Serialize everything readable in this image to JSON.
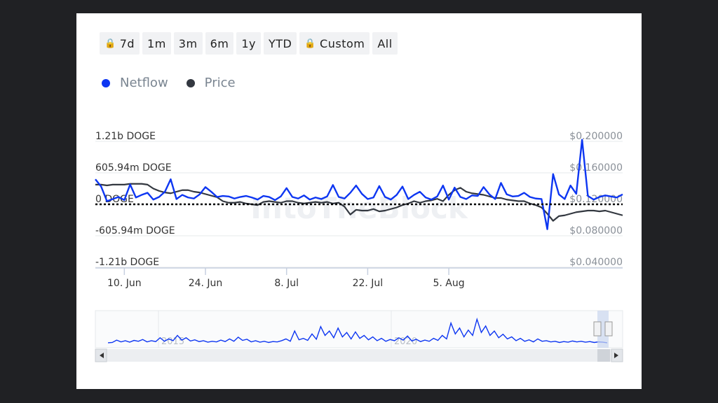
{
  "range_buttons": [
    {
      "label": "7d",
      "locked": true
    },
    {
      "label": "1m",
      "locked": false
    },
    {
      "label": "3m",
      "locked": false
    },
    {
      "label": "6m",
      "locked": false
    },
    {
      "label": "1y",
      "locked": false
    },
    {
      "label": "YTD",
      "locked": false
    },
    {
      "label": "Custom",
      "locked": true
    },
    {
      "label": "All",
      "locked": false
    }
  ],
  "legend": [
    {
      "label": "Netflow",
      "color": "#0d36f2"
    },
    {
      "label": "Price",
      "color": "#333840"
    }
  ],
  "watermark": "IntoTheBlock",
  "chart_data": {
    "type": "line",
    "x_ticks": [
      {
        "label": "10. Jun",
        "index": 5
      },
      {
        "label": "24. Jun",
        "index": 19
      },
      {
        "label": "8. Jul",
        "index": 33
      },
      {
        "label": "22. Jul",
        "index": 47
      },
      {
        "label": "5. Aug",
        "index": 61
      }
    ],
    "left_axis": {
      "unit": "DOGE",
      "ticks": [
        "1.21b DOGE",
        "605.94m DOGE",
        "0 DOGE",
        "-605.94m DOGE",
        "-1.21b DOGE"
      ],
      "ylim": [
        -1.21,
        1.21
      ]
    },
    "right_axis": {
      "ticks": [
        "$0.200000",
        "$0.160000",
        "$0.120000",
        "$0.080000",
        "$0.040000"
      ],
      "ylim": [
        0.04,
        0.2
      ]
    },
    "series": [
      {
        "name": "Netflow",
        "axis": "left",
        "unit": "b DOGE",
        "values": [
          0.36,
          0.22,
          -0.06,
          -0.02,
          0.02,
          -0.04,
          0.26,
          0.01,
          0.06,
          0.1,
          -0.03,
          0.02,
          0.12,
          0.36,
          -0.02,
          0.06,
          0.01,
          -0.01,
          0.07,
          0.21,
          0.12,
          0.02,
          0.04,
          0.03,
          -0.01,
          0.02,
          0.04,
          0.01,
          -0.03,
          0.04,
          0.02,
          -0.04,
          0.03,
          0.19,
          0.02,
          -0.01,
          0.05,
          -0.03,
          0.01,
          -0.02,
          0.03,
          0.25,
          0.02,
          -0.01,
          0.1,
          0.24,
          0.08,
          -0.02,
          0.01,
          0.23,
          0.02,
          -0.03,
          0.06,
          0.22,
          -0.02,
          0.06,
          0.12,
          0.01,
          -0.03,
          0.03,
          0.24,
          -0.03,
          0.2,
          0.02,
          -0.02,
          0.05,
          0.04,
          0.21,
          0.07,
          -0.02,
          0.29,
          0.07,
          0.03,
          0.04,
          0.1,
          0.02,
          -0.01,
          -0.02,
          -0.6,
          0.46,
          0.07,
          -0.02,
          0.24,
          0.08,
          1.12,
          0.04,
          -0.03,
          0.02,
          0.05,
          0.03,
          0.01,
          0.07
        ]
      },
      {
        "name": "Price",
        "axis": "right",
        "unit": "USD",
        "values": [
          0.137,
          0.137,
          0.136,
          0.137,
          0.137,
          0.137,
          0.138,
          0.138,
          0.138,
          0.137,
          0.132,
          0.129,
          0.127,
          0.126,
          0.128,
          0.13,
          0.13,
          0.128,
          0.127,
          0.125,
          0.123,
          0.121,
          0.116,
          0.114,
          0.114,
          0.115,
          0.113,
          0.112,
          0.111,
          0.115,
          0.116,
          0.115,
          0.114,
          0.116,
          0.116,
          0.114,
          0.113,
          0.114,
          0.115,
          0.114,
          0.115,
          0.113,
          0.114,
          0.109,
          0.099,
          0.105,
          0.104,
          0.104,
          0.106,
          0.103,
          0.104,
          0.106,
          0.108,
          0.111,
          0.113,
          0.116,
          0.114,
          0.116,
          0.117,
          0.119,
          0.116,
          0.124,
          0.13,
          0.133,
          0.128,
          0.126,
          0.125,
          0.124,
          0.122,
          0.12,
          0.12,
          0.118,
          0.117,
          0.116,
          0.116,
          0.113,
          0.111,
          0.108,
          0.1,
          0.091,
          0.097,
          0.098,
          0.1,
          0.102,
          0.103,
          0.104,
          0.104,
          0.103,
          0.104,
          0.102,
          0.1,
          0.098
        ]
      }
    ],
    "navigator": {
      "x_labels": [
        "2015",
        "2020"
      ],
      "values": [
        0.05,
        0.06,
        0.14,
        0.08,
        0.12,
        0.07,
        0.13,
        0.1,
        0.16,
        0.08,
        0.12,
        0.09,
        0.22,
        0.1,
        0.18,
        0.12,
        0.3,
        0.14,
        0.22,
        0.11,
        0.15,
        0.09,
        0.12,
        0.07,
        0.1,
        0.08,
        0.14,
        0.09,
        0.18,
        0.1,
        0.24,
        0.13,
        0.17,
        0.08,
        0.12,
        0.07,
        0.1,
        0.06,
        0.09,
        0.08,
        0.12,
        0.18,
        0.1,
        0.45,
        0.15,
        0.2,
        0.13,
        0.35,
        0.17,
        0.6,
        0.3,
        0.45,
        0.22,
        0.55,
        0.25,
        0.4,
        0.18,
        0.42,
        0.2,
        0.3,
        0.15,
        0.25,
        0.12,
        0.2,
        0.1,
        0.16,
        0.12,
        0.22,
        0.14,
        0.28,
        0.11,
        0.17,
        0.09,
        0.14,
        0.1,
        0.2,
        0.13,
        0.3,
        0.18,
        0.72,
        0.35,
        0.55,
        0.25,
        0.48,
        0.3,
        0.85,
        0.4,
        0.62,
        0.3,
        0.45,
        0.22,
        0.34,
        0.18,
        0.25,
        0.12,
        0.2,
        0.1,
        0.15,
        0.08,
        0.18,
        0.1,
        0.12,
        0.08,
        0.1,
        0.06,
        0.09,
        0.07,
        0.11,
        0.08,
        0.1,
        0.07,
        0.09,
        0.06,
        0.08,
        0.07,
        0.05
      ]
    }
  }
}
